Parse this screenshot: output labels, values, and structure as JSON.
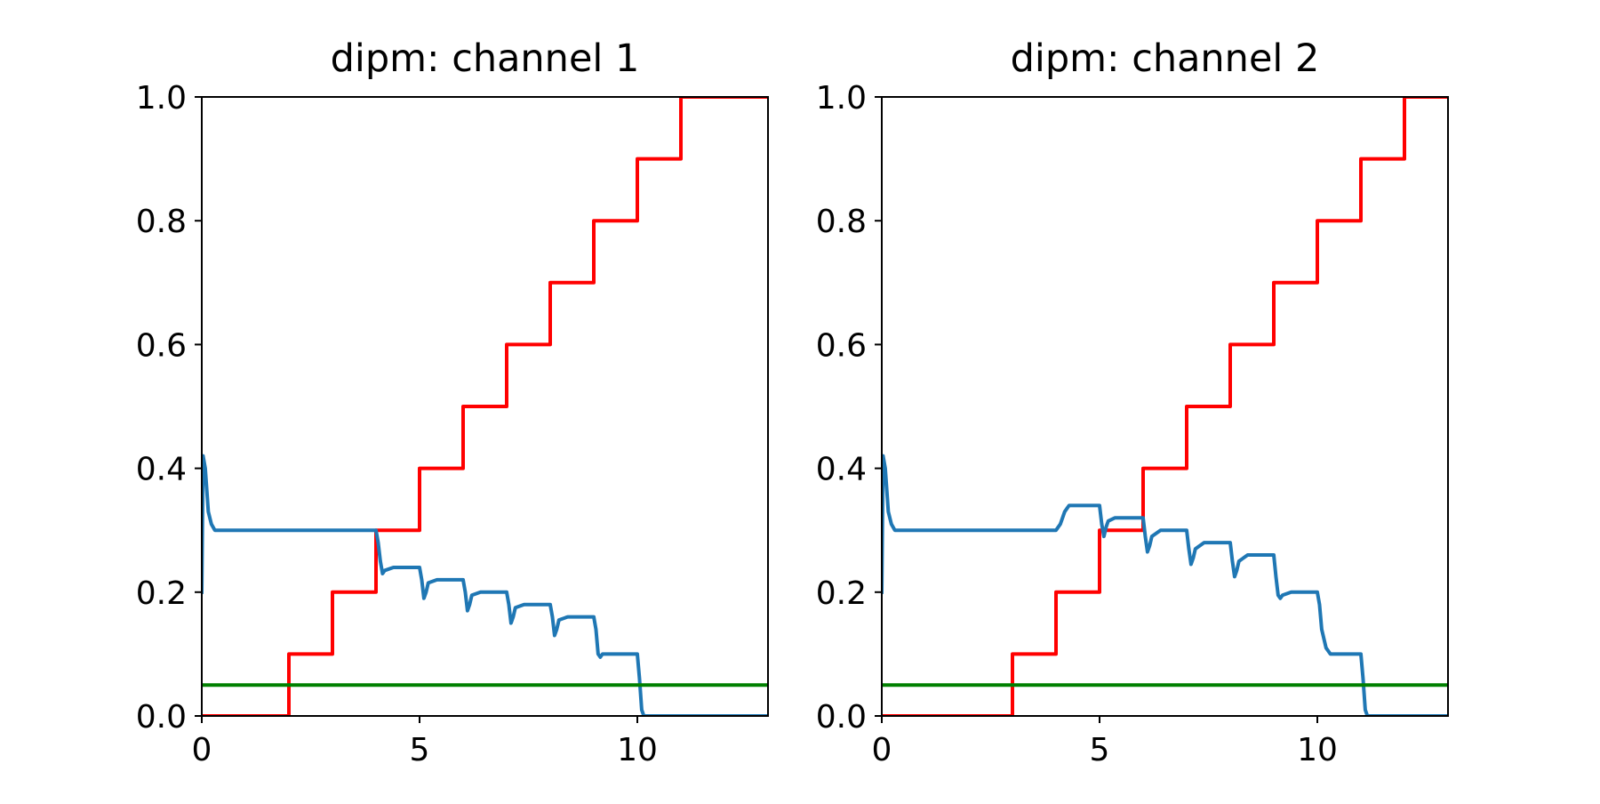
{
  "chart_data": [
    {
      "type": "line",
      "title": "dipm: channel 1",
      "xlim": [
        0,
        13
      ],
      "ylim": [
        0.0,
        1.0
      ],
      "xticks": [
        0,
        5,
        10
      ],
      "xtick_labels": [
        "0",
        "5",
        "10"
      ],
      "yticks": [
        0.0,
        0.2,
        0.4,
        0.6,
        0.8,
        1.0
      ],
      "ytick_labels": [
        "0.0",
        "0.2",
        "0.4",
        "0.6",
        "0.8",
        "1.0"
      ],
      "grid": false,
      "series": [
        {
          "color": "#ff0000",
          "x": [
            0,
            2,
            2,
            3,
            3,
            4,
            4,
            5,
            5,
            6,
            6,
            7,
            7,
            8,
            8,
            9,
            9,
            10,
            10,
            11,
            11,
            13
          ],
          "y": [
            0.0,
            0.0,
            0.1,
            0.1,
            0.2,
            0.2,
            0.3,
            0.3,
            0.4,
            0.4,
            0.5,
            0.5,
            0.6,
            0.6,
            0.7,
            0.7,
            0.8,
            0.8,
            0.9,
            0.9,
            1.0,
            1.0
          ]
        },
        {
          "color": "#1f77b4",
          "x": [
            0,
            0.03,
            0.08,
            0.15,
            0.22,
            0.3,
            0.45,
            0.6,
            4.0,
            4.05,
            4.1,
            4.15,
            4.2,
            4.4,
            5.0,
            5.05,
            5.1,
            5.15,
            5.2,
            5.4,
            6.0,
            6.05,
            6.1,
            6.15,
            6.2,
            6.4,
            7.0,
            7.05,
            7.1,
            7.15,
            7.2,
            7.4,
            8.0,
            8.05,
            8.1,
            8.15,
            8.2,
            8.4,
            9.0,
            9.05,
            9.1,
            9.15,
            9.2,
            9.4,
            10.0,
            10.05,
            10.1,
            10.15,
            10.2,
            10.3,
            10.5,
            13
          ],
          "y": [
            0.2,
            0.42,
            0.4,
            0.33,
            0.31,
            0.3,
            0.3,
            0.3,
            0.3,
            0.28,
            0.25,
            0.23,
            0.235,
            0.24,
            0.24,
            0.22,
            0.19,
            0.2,
            0.215,
            0.22,
            0.22,
            0.2,
            0.17,
            0.18,
            0.195,
            0.2,
            0.2,
            0.18,
            0.15,
            0.16,
            0.175,
            0.18,
            0.18,
            0.16,
            0.13,
            0.14,
            0.155,
            0.16,
            0.16,
            0.14,
            0.1,
            0.095,
            0.1,
            0.1,
            0.1,
            0.06,
            0.01,
            0.0,
            0.0,
            0.0,
            0.0,
            0.0
          ]
        },
        {
          "color": "#008000",
          "x": [
            0,
            13
          ],
          "y": [
            0.05,
            0.05
          ]
        }
      ]
    },
    {
      "type": "line",
      "title": "dipm: channel 2",
      "xlim": [
        0,
        13
      ],
      "ylim": [
        0.0,
        1.0
      ],
      "xticks": [
        0,
        5,
        10
      ],
      "xtick_labels": [
        "0",
        "5",
        "10"
      ],
      "yticks": [
        0.0,
        0.2,
        0.4,
        0.6,
        0.8,
        1.0
      ],
      "ytick_labels": [
        "0.0",
        "0.2",
        "0.4",
        "0.6",
        "0.8",
        "1.0"
      ],
      "grid": false,
      "series": [
        {
          "color": "#ff0000",
          "x": [
            0,
            3,
            3,
            4,
            4,
            5,
            5,
            6,
            6,
            7,
            7,
            8,
            8,
            9,
            9,
            10,
            10,
            11,
            11,
            12,
            12,
            13
          ],
          "y": [
            0.0,
            0.0,
            0.1,
            0.1,
            0.2,
            0.2,
            0.3,
            0.3,
            0.4,
            0.4,
            0.5,
            0.5,
            0.6,
            0.6,
            0.7,
            0.7,
            0.8,
            0.8,
            0.9,
            0.9,
            1.0,
            1.0
          ]
        },
        {
          "color": "#1f77b4",
          "x": [
            0,
            0.03,
            0.08,
            0.15,
            0.22,
            0.3,
            0.45,
            4.0,
            4.1,
            4.2,
            4.3,
            4.5,
            5.0,
            5.05,
            5.1,
            5.15,
            5.2,
            5.35,
            6.0,
            6.05,
            6.1,
            6.15,
            6.2,
            6.4,
            7.0,
            7.05,
            7.1,
            7.15,
            7.2,
            7.4,
            8.0,
            8.05,
            8.1,
            8.15,
            8.2,
            8.4,
            9.0,
            9.05,
            9.1,
            9.15,
            9.2,
            9.4,
            10.0,
            10.05,
            10.1,
            10.2,
            10.3,
            10.5,
            11.0,
            11.05,
            11.1,
            11.15,
            11.2,
            11.3,
            11.5,
            13
          ],
          "y": [
            0.2,
            0.42,
            0.4,
            0.33,
            0.31,
            0.3,
            0.3,
            0.3,
            0.31,
            0.33,
            0.34,
            0.34,
            0.34,
            0.31,
            0.29,
            0.305,
            0.315,
            0.32,
            0.32,
            0.29,
            0.265,
            0.275,
            0.29,
            0.3,
            0.3,
            0.27,
            0.245,
            0.255,
            0.27,
            0.28,
            0.28,
            0.25,
            0.225,
            0.235,
            0.25,
            0.26,
            0.26,
            0.225,
            0.195,
            0.19,
            0.195,
            0.2,
            0.2,
            0.18,
            0.14,
            0.11,
            0.1,
            0.1,
            0.1,
            0.06,
            0.01,
            0.0,
            0.0,
            0.0,
            0.0,
            0.0
          ]
        },
        {
          "color": "#008000",
          "x": [
            0,
            13
          ],
          "y": [
            0.05,
            0.05
          ]
        }
      ]
    }
  ]
}
